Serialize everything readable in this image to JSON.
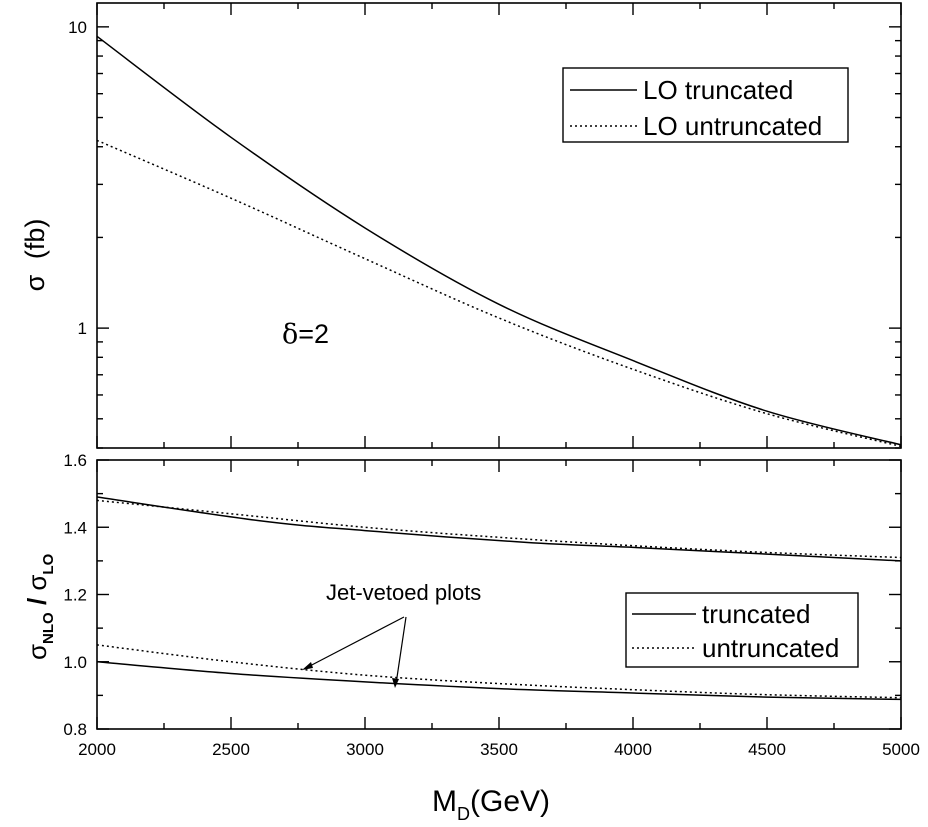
{
  "chart_data": [
    {
      "type": "line",
      "panel": "top",
      "ylabel_symbol": "σ",
      "ylabel_unit": "(fb)",
      "yscale": "log",
      "ylim": [
        0.4,
        12
      ],
      "xlim": [
        2000,
        5000
      ],
      "y_tick_labels": [
        "1",
        "10"
      ],
      "grid": false,
      "annotation": {
        "symbol": "δ",
        "text": "=2"
      },
      "legend": {
        "placement": "top-right",
        "entries": [
          {
            "label": "LO truncated",
            "style": "solid"
          },
          {
            "label": "LO untruncated",
            "style": "dotted"
          }
        ]
      },
      "series": [
        {
          "name": "LO truncated",
          "style": "solid",
          "x": [
            2000,
            2500,
            3000,
            3500,
            4000,
            4500,
            5000
          ],
          "y": [
            9.3,
            4.3,
            2.15,
            1.2,
            0.78,
            0.53,
            0.41
          ]
        },
        {
          "name": "LO untruncated",
          "style": "dotted",
          "x": [
            2000,
            2500,
            3000,
            3500,
            4000,
            4500,
            5000
          ],
          "y": [
            4.2,
            2.7,
            1.7,
            1.08,
            0.73,
            0.52,
            0.405
          ]
        }
      ]
    },
    {
      "type": "line",
      "panel": "bottom",
      "ylabel": {
        "num": "σ",
        "num_sub": "NLO",
        "sep": " / ",
        "den": "σ",
        "den_sub": "LO"
      },
      "ylim": [
        0.8,
        1.6
      ],
      "xlim": [
        2000,
        5000
      ],
      "y_ticks": [
        0.8,
        1.0,
        1.2,
        1.4,
        1.6
      ],
      "y_tick_labels": [
        "0.8",
        "1.0",
        "1.2",
        "1.4",
        "1.6"
      ],
      "x_ticks": [
        2000,
        2500,
        3000,
        3500,
        4000,
        4500,
        5000
      ],
      "x_tick_labels": [
        "2000",
        "2500",
        "3000",
        "3500",
        "4000",
        "4500",
        "5000"
      ],
      "xlabel": {
        "main": "M",
        "sub": "D",
        "rest": "(GeV)"
      },
      "grid": false,
      "annotation": {
        "text": "Jet-vetoed plots"
      },
      "legend": {
        "placement": "right",
        "entries": [
          {
            "label": "truncated",
            "style": "solid"
          },
          {
            "label": "untruncated",
            "style": "dotted"
          }
        ]
      },
      "series": [
        {
          "name": "truncated",
          "style": "solid",
          "x": [
            2000,
            2600,
            3000,
            3600,
            4000,
            4500,
            5000
          ],
          "y": [
            1.49,
            1.42,
            1.39,
            1.355,
            1.34,
            1.32,
            1.3
          ]
        },
        {
          "name": "untruncated",
          "style": "dotted",
          "x": [
            2000,
            2500,
            3000,
            3500,
            4000,
            4500,
            5000
          ],
          "y": [
            1.48,
            1.44,
            1.4,
            1.37,
            1.345,
            1.325,
            1.31
          ]
        },
        {
          "name": "truncated (jet-vetoed)",
          "style": "solid",
          "x": [
            2000,
            2500,
            3000,
            3500,
            4000,
            4500,
            5000
          ],
          "y": [
            1.0,
            0.965,
            0.94,
            0.92,
            0.907,
            0.895,
            0.888
          ]
        },
        {
          "name": "untruncated (jet-vetoed)",
          "style": "dotted",
          "x": [
            2000,
            2500,
            3000,
            3500,
            4000,
            4500,
            5000
          ],
          "y": [
            1.05,
            1.0,
            0.96,
            0.935,
            0.917,
            0.902,
            0.893
          ]
        }
      ]
    }
  ]
}
